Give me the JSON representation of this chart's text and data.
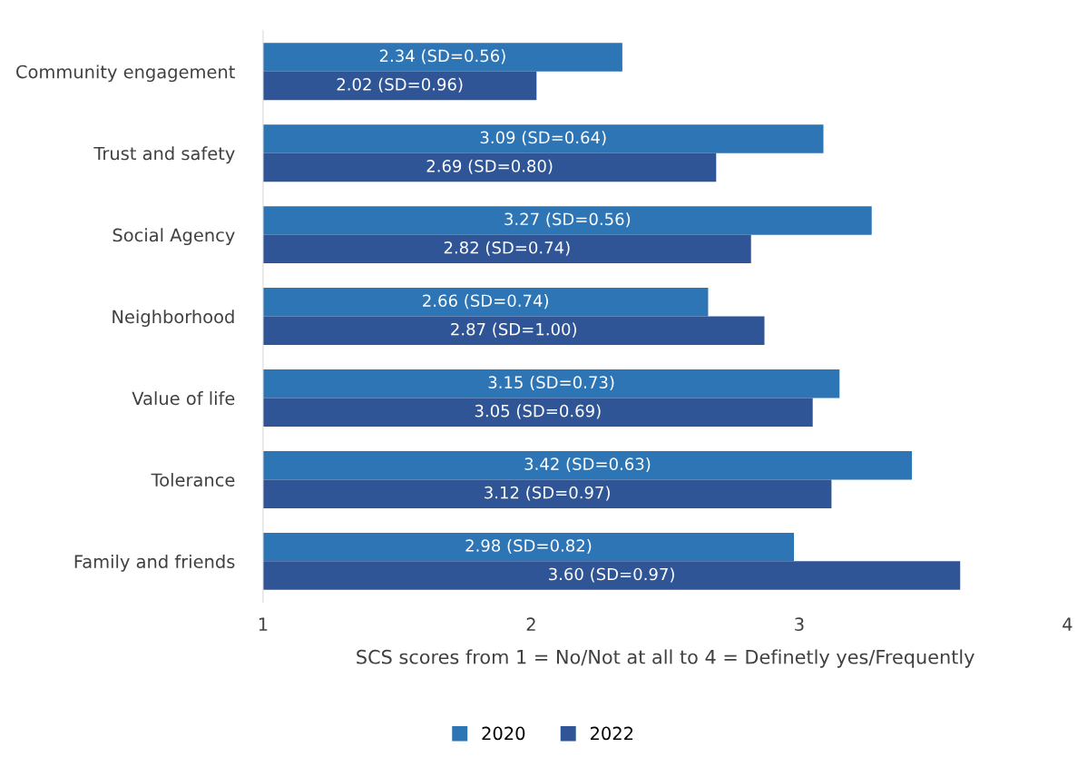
{
  "chart_data": {
    "type": "bar",
    "orientation": "horizontal",
    "xlabel": "SCS scores from 1 = No/Not at all to 4 = Definetly yes/Frequently",
    "categories": [
      "Community engagement",
      "Trust and safety",
      "Social Agency",
      "Neighborhood",
      "Value of life",
      "Tolerance",
      "Family and friends"
    ],
    "series": [
      {
        "name": "2020",
        "color": "#2e75b6",
        "values": [
          2.34,
          3.09,
          3.27,
          2.66,
          3.15,
          3.42,
          2.98
        ],
        "value_labels": [
          "2.34 (SD=0.56)",
          "3.09 (SD=0.64)",
          "3.27 (SD=0.56)",
          "2.66 (SD=0.74)",
          "3.15 (SD=0.73)",
          "3.42 (SD=0.63)",
          "2.98 (SD=0.82)"
        ]
      },
      {
        "name": "2022",
        "color": "#2f5597",
        "values": [
          2.02,
          2.69,
          2.82,
          2.87,
          3.05,
          3.12,
          3.6
        ],
        "value_labels": [
          "2.02 (SD=0.96)",
          "2.69 (SD=0.80)",
          "2.82 (SD=0.74)",
          "2.87 (SD=1.00)",
          "3.05 (SD=0.69)",
          "3.12 (SD=0.97)",
          "3.60 (SD=0.97)"
        ]
      }
    ],
    "xlim": [
      1,
      4
    ],
    "xticks": [
      1,
      2,
      3,
      4
    ],
    "grid": false,
    "legend": "bottom"
  }
}
